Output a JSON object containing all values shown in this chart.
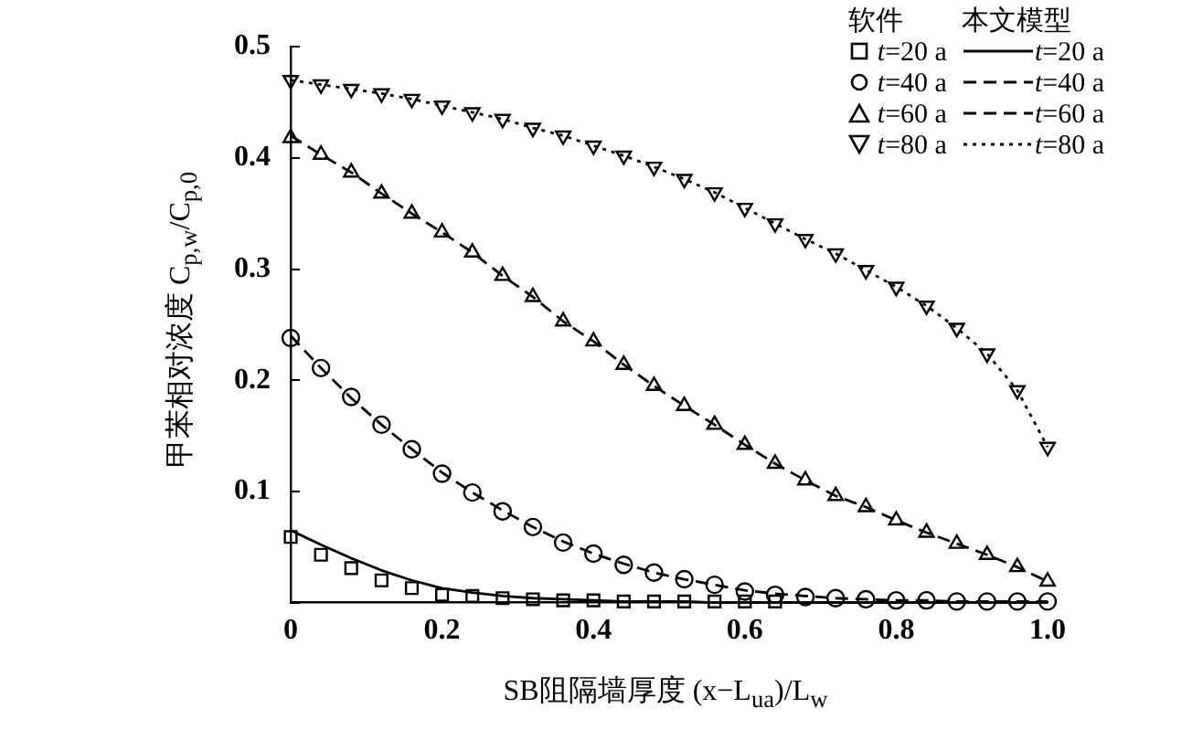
{
  "chart_data": {
    "type": "line",
    "xlabel": "SB阻隔墙厚度 (x−L$_{ua}$)/L$_{w}$",
    "ylabel": "甲苯相对浓度 C$_{p,w}$/C$_{p,0}$",
    "annotations": [
      "软件",
      "本文模型"
    ],
    "x": [
      0,
      0.04,
      0.08,
      0.12,
      0.16,
      0.2,
      0.24,
      0.28,
      0.32,
      0.36,
      0.4,
      0.44,
      0.48,
      0.52,
      0.56,
      0.6,
      0.64,
      0.68,
      0.72,
      0.76,
      0.8,
      0.84,
      0.88,
      0.92,
      0.96,
      1.0
    ],
    "xlim": [
      0,
      1
    ],
    "xticks": [
      0,
      0.2,
      0.4,
      0.6,
      0.8,
      {
        "value": 1,
        "label": "1.0"
      }
    ],
    "ylim": [
      0,
      0.5
    ],
    "yticks": [
      {
        "value": 0,
        "label": null
      },
      0.1,
      0.2,
      0.3,
      0.4,
      0.5
    ],
    "grid": false,
    "legend": "top right",
    "series": [
      {
        "name": "t=20 a",
        "type": "scatter",
        "marker": "square",
        "color": "#000000",
        "values": [
          0.059,
          0.043,
          0.031,
          0.02,
          0.013,
          0.007,
          0.006,
          0.004,
          0.003,
          0.002,
          0.002,
          0.001,
          0.001,
          0.001,
          0.001,
          0.001,
          0.001,
          null,
          null,
          null,
          null,
          null,
          null,
          null,
          null,
          null
        ]
      },
      {
        "name": "t=40 a",
        "type": "scatter",
        "marker": "circle",
        "color": "#000000",
        "values": [
          0.238,
          0.211,
          0.185,
          0.16,
          0.138,
          0.116,
          0.099,
          0.082,
          0.068,
          0.054,
          0.044,
          0.034,
          0.027,
          0.021,
          0.016,
          0.01,
          0.007,
          0.005,
          0.004,
          0.003,
          0.002,
          0.002,
          0.001,
          0.001,
          0.001,
          0.001
        ]
      },
      {
        "name": "t=60 a",
        "type": "scatter",
        "marker": "triangle",
        "color": "#000000",
        "values": [
          0.418,
          0.403,
          0.387,
          0.368,
          0.35,
          0.333,
          0.315,
          0.294,
          0.275,
          0.253,
          0.235,
          0.214,
          0.195,
          0.177,
          0.16,
          0.142,
          0.125,
          0.11,
          0.096,
          0.086,
          0.074,
          0.063,
          0.053,
          0.043,
          0.032,
          0.019
        ]
      },
      {
        "name": "t=80 a",
        "type": "scatter",
        "marker": "triangle_down",
        "color": "#000000",
        "values": [
          0.47,
          0.466,
          0.462,
          0.458,
          0.453,
          0.447,
          0.441,
          0.435,
          0.427,
          0.42,
          0.411,
          0.402,
          0.392,
          0.381,
          0.369,
          0.355,
          0.341,
          0.327,
          0.314,
          0.299,
          0.284,
          0.267,
          0.247,
          0.224,
          0.191,
          0.14
        ]
      },
      {
        "name": "t=20 a",
        "type": "line",
        "line_style": "solid",
        "color": "#000000",
        "values": [
          0.065,
          0.052,
          0.04,
          0.029,
          0.02,
          0.013,
          0.009,
          0.006,
          0.004,
          0.003,
          0.002,
          0.001,
          0.001,
          0.001,
          0,
          0,
          0,
          0,
          0,
          0,
          0,
          0,
          0,
          0,
          0,
          0
        ]
      },
      {
        "name": "t=40 a",
        "type": "line",
        "line_style": "dashed",
        "color": "#000000",
        "values": [
          0.24,
          0.211,
          0.184,
          0.16,
          0.138,
          0.117,
          0.099,
          0.083,
          0.068,
          0.055,
          0.044,
          0.035,
          0.027,
          0.021,
          0.016,
          0.011,
          0.008,
          0.006,
          0.004,
          0.003,
          0.002,
          0.002,
          0.001,
          0.001,
          0.001,
          0.001
        ]
      },
      {
        "name": "t=60 a",
        "type": "line",
        "line_style": "dashed",
        "color": "#000000",
        "values": [
          0.42,
          0.403,
          0.387,
          0.368,
          0.35,
          0.333,
          0.315,
          0.294,
          0.275,
          0.253,
          0.235,
          0.214,
          0.195,
          0.177,
          0.16,
          0.142,
          0.125,
          0.11,
          0.096,
          0.086,
          0.074,
          0.063,
          0.053,
          0.043,
          0.032,
          0.019
        ]
      },
      {
        "name": "t=80 a",
        "type": "line",
        "line_style": "dotted",
        "color": "#000000",
        "values": [
          0.47,
          0.466,
          0.462,
          0.458,
          0.453,
          0.447,
          0.441,
          0.435,
          0.427,
          0.42,
          0.411,
          0.402,
          0.392,
          0.381,
          0.369,
          0.355,
          0.341,
          0.327,
          0.314,
          0.299,
          0.284,
          0.267,
          0.247,
          0.224,
          0.191,
          0.14
        ]
      }
    ]
  }
}
